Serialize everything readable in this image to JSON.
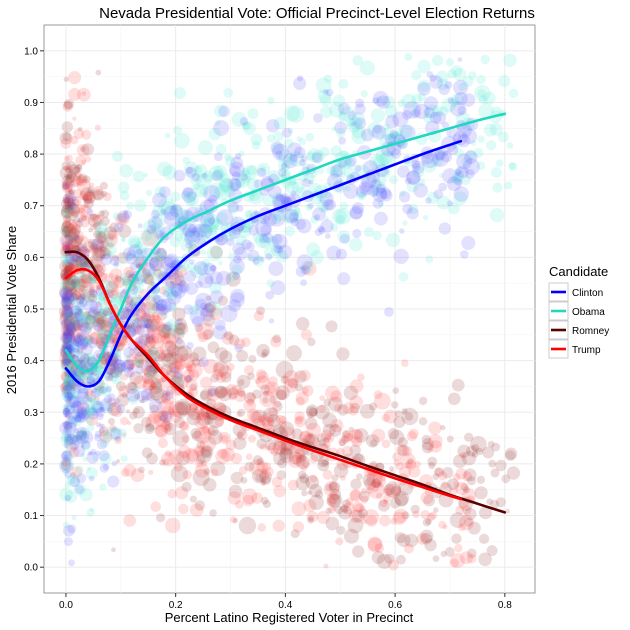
{
  "chart_data": {
    "type": "scatter",
    "title": "Nevada Presidential Vote: Official Precinct-Level Election Returns",
    "xlabel": "Percent Latino Registered Voter in Precinct",
    "ylabel": "2016 Presidential Vote Share",
    "xlim": [
      -0.04,
      0.855
    ],
    "ylim": [
      -0.05,
      1.05
    ],
    "x_ticks": [
      0.0,
      0.2,
      0.4,
      0.6,
      0.8
    ],
    "x_tick_labels": [
      "0.0",
      "0.2",
      "0.4",
      "0.6",
      "0.8"
    ],
    "y_ticks": [
      0.0,
      0.1,
      0.2,
      0.3,
      0.4,
      0.5,
      0.6,
      0.7,
      0.8,
      0.9,
      1.0
    ],
    "y_tick_labels": [
      "0.0",
      "0.1",
      "0.2",
      "0.3",
      "0.4",
      "0.5",
      "0.6",
      "0.7",
      "0.8",
      "0.9",
      "1.0"
    ],
    "grid": true,
    "legend": {
      "title": "Candidate",
      "placement": "right"
    },
    "series": [
      {
        "name": "Clinton",
        "color": "#0000ff",
        "smooth_x": [
          0.0,
          0.02,
          0.04,
          0.06,
          0.08,
          0.1,
          0.12,
          0.15,
          0.18,
          0.22,
          0.26,
          0.3,
          0.35,
          0.4,
          0.45,
          0.5,
          0.55,
          0.6,
          0.65,
          0.7,
          0.72
        ],
        "smooth_y": [
          0.385,
          0.36,
          0.35,
          0.36,
          0.4,
          0.45,
          0.49,
          0.53,
          0.56,
          0.6,
          0.63,
          0.655,
          0.68,
          0.7,
          0.72,
          0.74,
          0.76,
          0.78,
          0.8,
          0.818,
          0.825
        ]
      },
      {
        "name": "Obama",
        "color": "#20d8c0",
        "smooth_x": [
          0.0,
          0.02,
          0.04,
          0.06,
          0.08,
          0.1,
          0.12,
          0.15,
          0.18,
          0.22,
          0.26,
          0.3,
          0.35,
          0.4,
          0.45,
          0.5,
          0.55,
          0.6,
          0.65,
          0.7,
          0.75,
          0.8
        ],
        "smooth_y": [
          0.42,
          0.39,
          0.38,
          0.4,
          0.45,
          0.5,
          0.55,
          0.6,
          0.64,
          0.67,
          0.69,
          0.71,
          0.73,
          0.75,
          0.77,
          0.79,
          0.805,
          0.82,
          0.835,
          0.85,
          0.865,
          0.878
        ]
      },
      {
        "name": "Romney",
        "color": "#5a0000",
        "smooth_x": [
          0.0,
          0.02,
          0.04,
          0.06,
          0.08,
          0.1,
          0.12,
          0.15,
          0.18,
          0.22,
          0.26,
          0.3,
          0.35,
          0.4,
          0.45,
          0.5,
          0.55,
          0.6,
          0.65,
          0.7,
          0.75,
          0.8
        ],
        "smooth_y": [
          0.61,
          0.61,
          0.595,
          0.56,
          0.51,
          0.47,
          0.44,
          0.405,
          0.37,
          0.335,
          0.31,
          0.29,
          0.27,
          0.25,
          0.232,
          0.215,
          0.196,
          0.178,
          0.16,
          0.14,
          0.123,
          0.106
        ]
      },
      {
        "name": "Trump",
        "color": "#ff0000",
        "smooth_x": [
          0.0,
          0.02,
          0.04,
          0.06,
          0.08,
          0.1,
          0.12,
          0.15,
          0.18,
          0.22,
          0.26,
          0.3,
          0.35,
          0.4,
          0.45,
          0.5,
          0.55,
          0.6,
          0.65,
          0.7,
          0.72
        ],
        "smooth_y": [
          0.56,
          0.575,
          0.575,
          0.555,
          0.51,
          0.47,
          0.44,
          0.41,
          0.37,
          0.33,
          0.305,
          0.285,
          0.265,
          0.245,
          0.226,
          0.208,
          0.19,
          0.172,
          0.155,
          0.138,
          0.132
        ]
      }
    ]
  }
}
